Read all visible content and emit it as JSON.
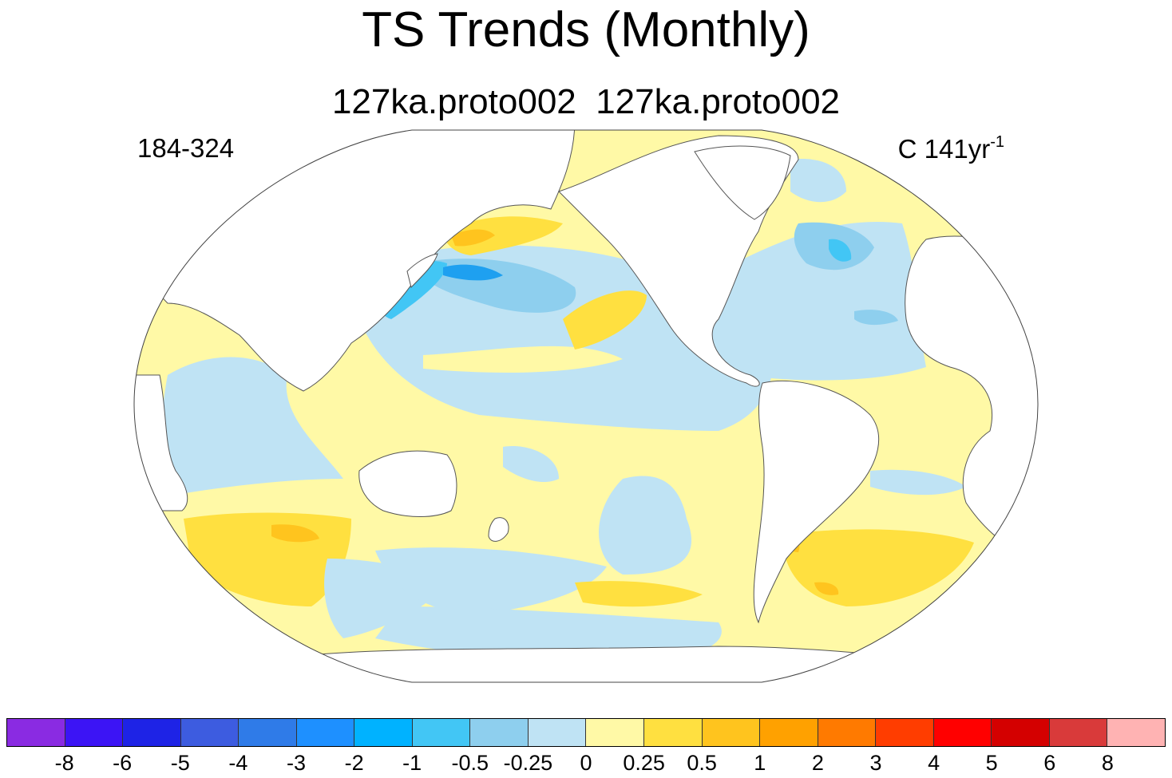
{
  "title": "TS Trends (Monthly)",
  "subtitle": "127ka.proto002  127ka.proto002",
  "left_label": "184-324",
  "units": {
    "prefix": "C 141yr",
    "exponent": "-1"
  },
  "colorbar": {
    "colors": [
      "#8a2be2",
      "#3c14f5",
      "#1e23e6",
      "#3d5ce0",
      "#2f7be8",
      "#1e90ff",
      "#00b2ff",
      "#42c6f5",
      "#8ecfee",
      "#bfe3f4",
      "#fff9a6",
      "#ffe040",
      "#ffc41e",
      "#ffa100",
      "#ff7a00",
      "#ff3d00",
      "#ff0000",
      "#d40000",
      "#d93a3a",
      "#ffb3b3"
    ],
    "labels": [
      "-8",
      "-6",
      "-5",
      "-4",
      "-3",
      "-2",
      "-1",
      "-0.5",
      "-0.25",
      "0",
      "0.25",
      "0.5",
      "1",
      "2",
      "3",
      "4",
      "5",
      "6",
      "8"
    ]
  },
  "map_colors": {
    "ocean_base": "#fff9a6",
    "cool_light": "#bfe3f4",
    "cool_mid": "#8ecfee",
    "cool_strong": "#42c6f5",
    "cool_deep": "#1ea0f0",
    "warm_mid": "#ffe040",
    "warm_strong": "#ffc41e",
    "land": "#ffffff",
    "coast": "#555555"
  }
}
